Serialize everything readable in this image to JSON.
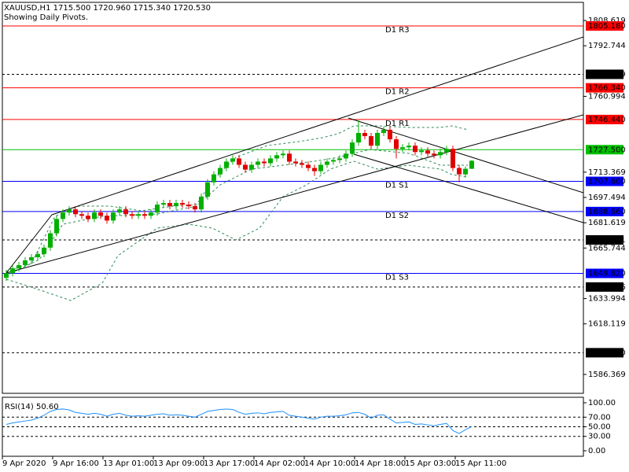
{
  "header": {
    "symbol": "XAUUSD,H1  1715.500 1720.960 1715.340 1720.530",
    "note": "Showing Daily Pivots."
  },
  "chart_data": {
    "type": "candlestick",
    "up_color": "#00b000",
    "down_color": "#e00000",
    "candles": [
      [
        1647,
        1652,
        1645,
        1650
      ],
      [
        1650,
        1655,
        1648,
        1653
      ],
      [
        1653,
        1657,
        1651,
        1655
      ],
      [
        1655,
        1660,
        1653,
        1658
      ],
      [
        1658,
        1662,
        1656,
        1660
      ],
      [
        1660,
        1664,
        1658,
        1662
      ],
      [
        1662,
        1668,
        1660,
        1666
      ],
      [
        1666,
        1677,
        1664,
        1675
      ],
      [
        1675,
        1686,
        1673,
        1684
      ],
      [
        1684,
        1690,
        1682,
        1688
      ],
      [
        1688,
        1692,
        1686,
        1690
      ],
      [
        1690,
        1692,
        1685,
        1687
      ],
      [
        1687,
        1689,
        1684,
        1686
      ],
      [
        1686,
        1688,
        1682,
        1684
      ],
      [
        1684,
        1690,
        1682,
        1688
      ],
      [
        1688,
        1690,
        1684,
        1686
      ],
      [
        1686,
        1688,
        1681,
        1683
      ],
      [
        1683,
        1690,
        1681,
        1688
      ],
      [
        1688,
        1692,
        1686,
        1690
      ],
      [
        1690,
        1692,
        1685,
        1687
      ],
      [
        1687,
        1689,
        1684,
        1686
      ],
      [
        1686,
        1689,
        1684,
        1687
      ],
      [
        1687,
        1689,
        1684,
        1686
      ],
      [
        1686,
        1690,
        1684,
        1688
      ],
      [
        1688,
        1695,
        1686,
        1693
      ],
      [
        1693,
        1696,
        1691,
        1694
      ],
      [
        1694,
        1696,
        1690,
        1692
      ],
      [
        1692,
        1696,
        1690,
        1694
      ],
      [
        1694,
        1696,
        1691,
        1693
      ],
      [
        1693,
        1695,
        1690,
        1692
      ],
      [
        1692,
        1694,
        1688,
        1690
      ],
      [
        1690,
        1700,
        1688,
        1698
      ],
      [
        1698,
        1709,
        1696,
        1707
      ],
      [
        1707,
        1714,
        1705,
        1712
      ],
      [
        1712,
        1718,
        1710,
        1716
      ],
      [
        1716,
        1722,
        1714,
        1720
      ],
      [
        1720,
        1724,
        1718,
        1722
      ],
      [
        1722,
        1724,
        1716,
        1718
      ],
      [
        1718,
        1720,
        1713,
        1715
      ],
      [
        1715,
        1720,
        1713,
        1718
      ],
      [
        1718,
        1722,
        1716,
        1720
      ],
      [
        1720,
        1722,
        1717,
        1719
      ],
      [
        1719,
        1724,
        1717,
        1722
      ],
      [
        1722,
        1726,
        1720,
        1724
      ],
      [
        1724,
        1727,
        1722,
        1725
      ],
      [
        1725,
        1727,
        1718,
        1720
      ],
      [
        1720,
        1722,
        1717,
        1719
      ],
      [
        1719,
        1721,
        1716,
        1718
      ],
      [
        1718,
        1720,
        1714,
        1716
      ],
      [
        1716,
        1718,
        1711,
        1714
      ],
      [
        1714,
        1720,
        1712,
        1718
      ],
      [
        1718,
        1722,
        1716,
        1720
      ],
      [
        1720,
        1722,
        1718,
        1721
      ],
      [
        1721,
        1724,
        1719,
        1722
      ],
      [
        1722,
        1727,
        1720,
        1725
      ],
      [
        1725,
        1734,
        1723,
        1732
      ],
      [
        1732,
        1746,
        1730,
        1738
      ],
      [
        1738,
        1740,
        1734,
        1736
      ],
      [
        1736,
        1738,
        1728,
        1730
      ],
      [
        1730,
        1740,
        1728,
        1738
      ],
      [
        1738,
        1742,
        1736,
        1740
      ],
      [
        1740,
        1742,
        1732,
        1734
      ],
      [
        1734,
        1736,
        1722,
        1728
      ],
      [
        1728,
        1731,
        1726,
        1729
      ],
      [
        1729,
        1732,
        1727,
        1730
      ],
      [
        1730,
        1732,
        1724,
        1726
      ],
      [
        1726,
        1729,
        1724,
        1727
      ],
      [
        1727,
        1729,
        1723,
        1725
      ],
      [
        1725,
        1727,
        1722,
        1724
      ],
      [
        1724,
        1728,
        1722,
        1726
      ],
      [
        1726,
        1730,
        1724,
        1728
      ],
      [
        1728,
        1730,
        1714,
        1716
      ],
      [
        1716,
        1718,
        1707,
        1712
      ],
      [
        1712,
        1717,
        1710,
        1715.5
      ],
      [
        1715.5,
        1720.96,
        1715.34,
        1720.53
      ]
    ],
    "ylim": [
      1574.5,
      1820.0
    ],
    "yticks": [
      1808.619,
      1792.744,
      1760.994,
      1713.369,
      1697.494,
      1681.619,
      1665.744,
      1633.994,
      1618.119,
      1586.369
    ],
    "levels": [
      {
        "value": 1805.18,
        "label": "1805.180",
        "name": "D1 R3",
        "color": "#ff0000",
        "style": "solid"
      },
      {
        "value": 1774.819,
        "label": "1774.819",
        "color": "#000000",
        "style": "dashed"
      },
      {
        "value": 1766.34,
        "label": "1766.340",
        "name": "D1 R2",
        "color": "#ff0000",
        "style": "solid"
      },
      {
        "value": 1746.44,
        "label": "1746.440",
        "name": "D1 R1",
        "color": "#ff0000",
        "style": "solid"
      },
      {
        "value": 1727.5,
        "label": "1727.500",
        "color": "#00c000",
        "style": "solid"
      },
      {
        "value": 1707.6,
        "label": "1707.600",
        "name": "D1 S1",
        "color": "#0000ff",
        "style": "solid"
      },
      {
        "value": 1688.66,
        "label": "1688.660",
        "name": "D1 S2",
        "color": "#0000ff",
        "style": "solid"
      },
      {
        "value": 1670.821,
        "label": "1670.821",
        "color": "#000000",
        "style": "dashed"
      },
      {
        "value": 1649.82,
        "label": "1649.820",
        "name": "D1 S3",
        "color": "#0000ff",
        "style": "solid"
      },
      {
        "value": 1641.266,
        "label": "1641.266",
        "color": "#000000",
        "style": "dashed"
      },
      {
        "value": 1600.0,
        "label": "1600.000",
        "color": "#000000",
        "style": "dashed"
      }
    ],
    "time_labels": [
      "9 Apr 2020",
      "9 Apr 16:00",
      "13 Apr 01:00",
      "13 Apr 09:00",
      "13 Apr 17:00",
      "14 Apr 02:00",
      "14 Apr 10:00",
      "14 Apr 18:00",
      "15 Apr 03:00",
      "15 Apr 11:00"
    ]
  },
  "rsi": {
    "type": "line",
    "title": "RSI(14) 50.60",
    "color": "#1e90ff",
    "values": [
      55,
      58,
      60,
      62,
      64,
      68,
      74,
      82,
      86,
      87,
      85,
      80,
      78,
      76,
      78,
      76,
      72,
      76,
      78,
      74,
      72,
      73,
      72,
      74,
      76,
      77,
      74,
      75,
      74,
      72,
      70,
      76,
      82,
      84,
      86,
      87,
      86,
      80,
      76,
      78,
      79,
      77,
      80,
      81,
      82,
      74,
      72,
      70,
      68,
      66,
      70,
      72,
      72,
      73,
      75,
      79,
      80,
      76,
      68,
      74,
      75,
      66,
      58,
      59,
      60,
      55,
      56,
      54,
      52,
      55,
      57,
      42,
      36,
      44,
      50.6
    ],
    "ylim": [
      -11.5,
      111.5
    ],
    "yticks": [
      {
        "value": 100,
        "label": "100.00"
      },
      {
        "value": 70,
        "label": "70.00"
      },
      {
        "value": 50,
        "label": "50.00"
      },
      {
        "value": 30,
        "label": "30.00"
      },
      {
        "value": 0,
        "label": "0.00"
      }
    ],
    "levels": [
      70,
      50,
      30
    ]
  }
}
